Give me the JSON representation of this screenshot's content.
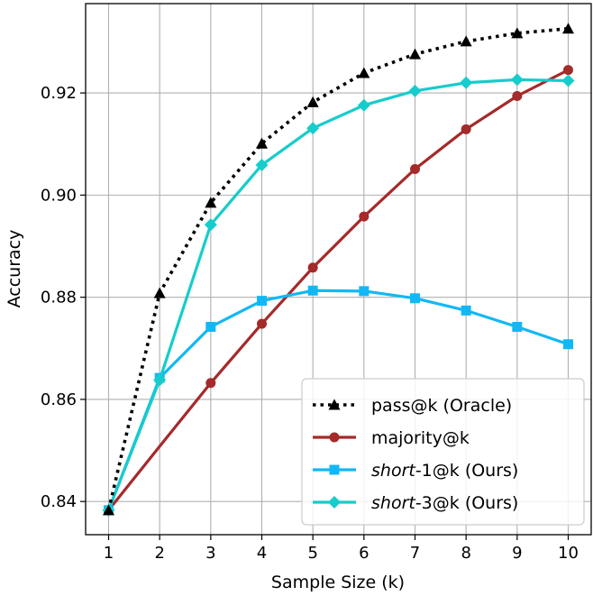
{
  "chart_data": {
    "type": "line",
    "title": "",
    "xlabel": "Sample Size (k)",
    "ylabel": "Accuracy",
    "xlim": [
      0.55,
      10.45
    ],
    "ylim": [
      0.8335,
      0.9375
    ],
    "grid": true,
    "legend_position": "lower-right",
    "x": [
      1,
      2,
      3,
      4,
      5,
      6,
      7,
      8,
      9,
      10
    ],
    "x_tick_labels": [
      "1",
      "2",
      "3",
      "4",
      "5",
      "6",
      "7",
      "8",
      "9",
      "10"
    ],
    "y_ticks": [
      0.84,
      0.86,
      0.88,
      0.9,
      0.92
    ],
    "y_tick_labels": [
      "0.84",
      "0.86",
      "0.88",
      "0.90",
      "0.92"
    ],
    "series": [
      {
        "id": "pass",
        "name": "pass@k (Oracle)",
        "legend_italic": "",
        "legend_rest": "pass@k (Oracle)",
        "color": "#000000",
        "line_style": "dotted",
        "marker": "triangle",
        "values": [
          0.8383,
          0.8808,
          0.8985,
          0.9101,
          0.9182,
          0.9239,
          0.9276,
          0.9301,
          0.9317,
          0.9326
        ]
      },
      {
        "id": "majority",
        "name": "majority@k",
        "legend_italic": "",
        "legend_rest": "majority@k",
        "color": "#a52a2a",
        "line_style": "solid",
        "marker": "circle",
        "marker_x": [
          1,
          3,
          4,
          5,
          6,
          7,
          8,
          9,
          10
        ],
        "values": [
          0.8383,
          0.8508,
          0.8632,
          0.8748,
          0.8858,
          0.8958,
          0.9051,
          0.9129,
          0.9194,
          0.9245
        ]
      },
      {
        "id": "short1",
        "name": "short-1@k (Ours)",
        "legend_italic": "short",
        "legend_rest": "-1@k  (Ours)",
        "color": "#12b8f5",
        "line_style": "solid",
        "marker": "square",
        "values": [
          0.8383,
          0.8642,
          0.8742,
          0.8793,
          0.8813,
          0.8812,
          0.8798,
          0.8774,
          0.8742,
          0.8708
        ]
      },
      {
        "id": "short3",
        "name": "short-3@k (Ours)",
        "legend_italic": "short",
        "legend_rest": "-3@k  (Ours)",
        "color": "#17cccc",
        "line_style": "solid",
        "marker": "diamond",
        "values": [
          0.8383,
          0.8638,
          0.8942,
          0.9059,
          0.9131,
          0.9176,
          0.9204,
          0.922,
          0.9226,
          0.9224
        ]
      }
    ]
  }
}
